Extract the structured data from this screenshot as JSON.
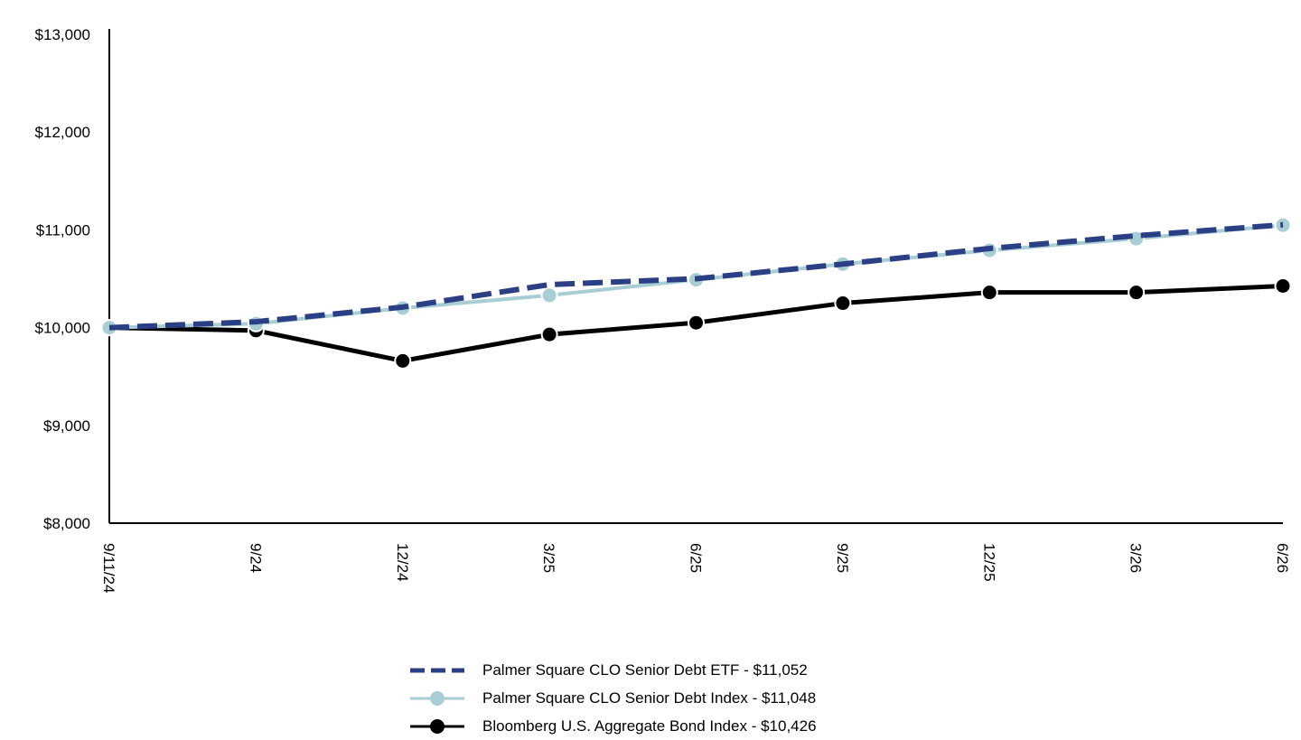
{
  "chart_data": {
    "type": "line",
    "x": [
      "9/11/24",
      "9/24",
      "12/24",
      "3/25",
      "6/25",
      "9/25",
      "12/25",
      "3/26",
      "6/26"
    ],
    "ylim": [
      8000,
      13000
    ],
    "yticks": [
      8000,
      9000,
      10000,
      11000,
      12000,
      13000
    ],
    "ytick_labels": [
      "$8,000",
      "$9,000",
      "$10,000",
      "$11,000",
      "$12,000",
      "$13,000"
    ],
    "grid": false,
    "legend_position": "bottom-center",
    "series": [
      {
        "name": "Palmer Square CLO Senior Debt ETF - $11,052",
        "color": "#2b3f85",
        "style": "dashed",
        "values": [
          10000,
          10060,
          10210,
          10440,
          10500,
          10650,
          10810,
          10940,
          11052
        ]
      },
      {
        "name": "Palmer Square CLO Senior Debt Index - $11,048",
        "color": "#a8cdd4",
        "style": "solid-markers",
        "values": [
          10000,
          10040,
          10200,
          10330,
          10490,
          10650,
          10790,
          10910,
          11048
        ]
      },
      {
        "name": "Bloomberg U.S. Aggregate Bond Index - $10,426",
        "color": "#000000",
        "style": "solid-markers",
        "values": [
          10000,
          9970,
          9660,
          9930,
          10050,
          10250,
          10360,
          10360,
          10426
        ]
      }
    ]
  }
}
